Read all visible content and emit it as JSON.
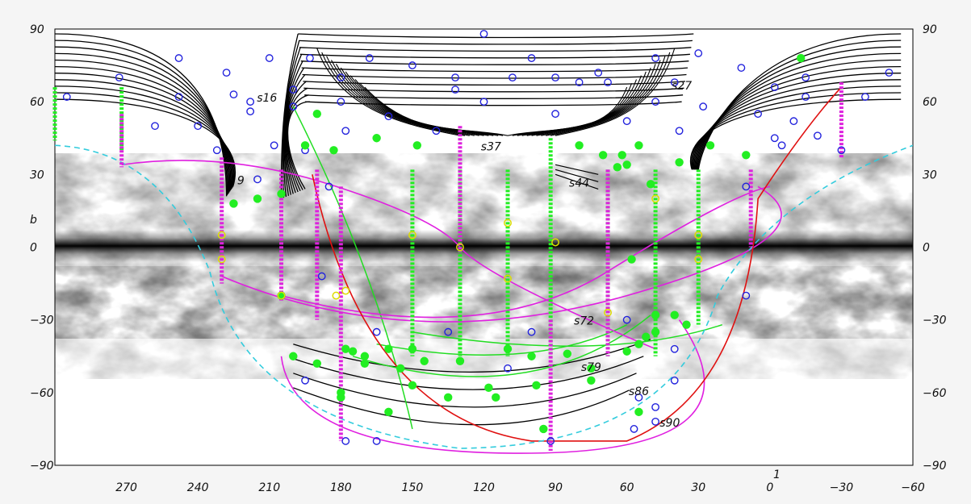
{
  "chart_data": {
    "type": "scatter",
    "title": "",
    "xlabel": "1",
    "ylabel": "b",
    "xlim": [
      300,
      -60
    ],
    "ylim": [
      -90,
      90
    ],
    "x_ticks": [
      270,
      240,
      210,
      180,
      150,
      120,
      90,
      60,
      30,
      0,
      -30,
      -60
    ],
    "y_ticks": [
      90,
      60,
      30,
      0,
      -30,
      -60,
      -90
    ],
    "y_tick_labels": [
      "90",
      "60",
      "30",
      "0",
      "−30",
      "−60",
      "−90"
    ],
    "x_tick_labels": [
      "270",
      "240",
      "210",
      "180",
      "150",
      "120",
      "90",
      "60",
      "30",
      "0",
      "−30",
      "−60"
    ],
    "background": "grayscale all-sky dust map with dark galactic plane at b=0",
    "colors": {
      "track_black": "#000000",
      "track_magenta": "#e020e0",
      "track_green": "#22dd22",
      "track_red": "#e01010",
      "boundary_cyan": "#33ccdd",
      "open_circle_blue": "#2222dd",
      "filled_circle_green": "#22ee22",
      "open_circle_yellow": "#dddd00",
      "dotted_column_green": "#22ee22",
      "dotted_column_magenta": "#dd22dd"
    },
    "annotations": [
      {
        "text": "s16",
        "l": 211,
        "b": 60
      },
      {
        "text": "s27",
        "l": 37,
        "b": 65
      },
      {
        "text": "s37",
        "l": 117,
        "b": 40
      },
      {
        "text": "s44",
        "l": 80,
        "b": 25
      },
      {
        "text": "s72",
        "l": 78,
        "b": -32
      },
      {
        "text": "s79",
        "l": 75,
        "b": -51
      },
      {
        "text": "s86",
        "l": 55,
        "b": -61
      },
      {
        "text": "s90",
        "l": 42,
        "b": -74
      },
      {
        "text": "9",
        "l": 222,
        "b": 26
      }
    ],
    "series": [
      {
        "kind": "open_circles_blue",
        "points": [
          [
            295,
            62
          ],
          [
            273,
            70
          ],
          [
            248,
            78
          ],
          [
            228,
            72
          ],
          [
            248,
            62
          ],
          [
            240,
            50
          ],
          [
            258,
            50
          ],
          [
            218,
            56
          ],
          [
            210,
            78
          ],
          [
            193,
            78
          ],
          [
            200,
            65
          ],
          [
            180,
            70
          ],
          [
            168,
            78
          ],
          [
            150,
            75
          ],
          [
            132,
            70
          ],
          [
            120,
            88
          ],
          [
            100,
            78
          ],
          [
            90,
            70
          ],
          [
            72,
            72
          ],
          [
            68,
            68
          ],
          [
            48,
            78
          ],
          [
            40,
            68
          ],
          [
            30,
            80
          ],
          [
            12,
            74
          ],
          [
            -2,
            66
          ],
          [
            -15,
            70
          ],
          [
            -50,
            72
          ],
          [
            -40,
            62
          ],
          [
            -15,
            62
          ],
          [
            -30,
            40
          ],
          [
            -20,
            46
          ],
          [
            -10,
            52
          ],
          [
            -5,
            42
          ],
          [
            -2,
            45
          ],
          [
            5,
            55
          ],
          [
            28,
            58
          ],
          [
            38,
            48
          ],
          [
            48,
            60
          ],
          [
            60,
            52
          ],
          [
            80,
            68
          ],
          [
            90,
            55
          ],
          [
            108,
            70
          ],
          [
            120,
            60
          ],
          [
            132,
            65
          ],
          [
            140,
            48
          ],
          [
            160,
            54
          ],
          [
            178,
            48
          ],
          [
            195,
            40
          ],
          [
            208,
            42
          ],
          [
            232,
            40
          ],
          [
            200,
            58
          ],
          [
            180,
            60
          ],
          [
            218,
            60
          ],
          [
            225,
            63
          ],
          [
            10,
            25
          ],
          [
            10,
            -20
          ],
          [
            185,
            25
          ],
          [
            55,
            -62
          ],
          [
            48,
            -72
          ],
          [
            48,
            -66
          ],
          [
            40,
            -55
          ],
          [
            40,
            -42
          ],
          [
            57,
            -75
          ],
          [
            110,
            -50
          ],
          [
            100,
            -35
          ],
          [
            135,
            -35
          ],
          [
            165,
            -35
          ],
          [
            195,
            -55
          ],
          [
            165,
            -80
          ],
          [
            178,
            -80
          ],
          [
            92,
            -80
          ],
          [
            60,
            -30
          ],
          [
            215,
            28
          ],
          [
            188,
            -12
          ]
        ]
      },
      {
        "kind": "filled_circles_green",
        "points": [
          [
            190,
            55
          ],
          [
            195,
            42
          ],
          [
            183,
            40
          ],
          [
            165,
            45
          ],
          [
            148,
            42
          ],
          [
            80,
            42
          ],
          [
            70,
            38
          ],
          [
            62,
            38
          ],
          [
            55,
            42
          ],
          [
            38,
            35
          ],
          [
            25,
            42
          ],
          [
            -13,
            78
          ],
          [
            10,
            38
          ],
          [
            50,
            26
          ],
          [
            60,
            34
          ],
          [
            64,
            33
          ],
          [
            58,
            -5
          ],
          [
            48,
            -28
          ],
          [
            48,
            -35
          ],
          [
            52,
            -37
          ],
          [
            55,
            -40
          ],
          [
            60,
            -43
          ],
          [
            40,
            -28
          ],
          [
            35,
            -32
          ],
          [
            75,
            -50
          ],
          [
            85,
            -44
          ],
          [
            100,
            -45
          ],
          [
            110,
            -42
          ],
          [
            130,
            -47
          ],
          [
            145,
            -47
          ],
          [
            155,
            -50
          ],
          [
            150,
            -42
          ],
          [
            160,
            -42
          ],
          [
            170,
            -45
          ],
          [
            175,
            -43
          ],
          [
            190,
            -48
          ],
          [
            200,
            -45
          ],
          [
            205,
            -20
          ],
          [
            205,
            22
          ],
          [
            215,
            20
          ],
          [
            225,
            18
          ],
          [
            178,
            -42
          ],
          [
            180,
            -60
          ],
          [
            180,
            -62
          ],
          [
            170,
            -48
          ],
          [
            150,
            -57
          ],
          [
            135,
            -62
          ],
          [
            115,
            -62
          ],
          [
            95,
            -75
          ],
          [
            160,
            -68
          ],
          [
            118,
            -58
          ],
          [
            98,
            -57
          ],
          [
            75,
            -55
          ],
          [
            55,
            -68
          ]
        ]
      },
      {
        "kind": "open_circles_yellow",
        "points": [
          [
            230,
            5
          ],
          [
            230,
            -5
          ],
          [
            205,
            -20
          ],
          [
            182,
            -20
          ],
          [
            178,
            -18
          ],
          [
            150,
            5
          ],
          [
            130,
            0
          ],
          [
            110,
            10
          ],
          [
            110,
            -13
          ],
          [
            90,
            2
          ],
          [
            68,
            -27
          ],
          [
            48,
            20
          ],
          [
            30,
            -5
          ],
          [
            30,
            5
          ]
        ]
      },
      {
        "kind": "dotted_column_green",
        "columns": [
          {
            "l": 300,
            "b_from": 44,
            "b_to": 66
          },
          {
            "l": 272,
            "b_from": 40,
            "b_to": 66
          },
          {
            "l": 150,
            "b_from": -45,
            "b_to": 32
          },
          {
            "l": 130,
            "b_from": -45,
            "b_to": 32
          },
          {
            "l": 110,
            "b_from": -45,
            "b_to": 32
          },
          {
            "l": 92,
            "b_from": -45,
            "b_to": 45
          },
          {
            "l": 68,
            "b_from": -45,
            "b_to": 32
          },
          {
            "l": 48,
            "b_from": -45,
            "b_to": 32
          },
          {
            "l": 30,
            "b_from": -32,
            "b_to": 32
          }
        ]
      },
      {
        "kind": "dotted_column_magenta",
        "columns": [
          {
            "l": 272,
            "b_from": 33,
            "b_to": 55
          },
          {
            "l": 230,
            "b_from": -15,
            "b_to": 37
          },
          {
            "l": 205,
            "b_from": -22,
            "b_to": 32
          },
          {
            "l": 190,
            "b_from": -30,
            "b_to": 32
          },
          {
            "l": 180,
            "b_from": -80,
            "b_to": 25
          },
          {
            "l": 130,
            "b_from": -2,
            "b_to": 50
          },
          {
            "l": 92,
            "b_from": -84,
            "b_to": -30
          },
          {
            "l": 68,
            "b_from": -45,
            "b_to": 32
          },
          {
            "l": 8,
            "b_from": 0,
            "b_to": 32
          },
          {
            "l": -30,
            "b_from": 37,
            "b_to": 68
          }
        ]
      }
    ]
  }
}
